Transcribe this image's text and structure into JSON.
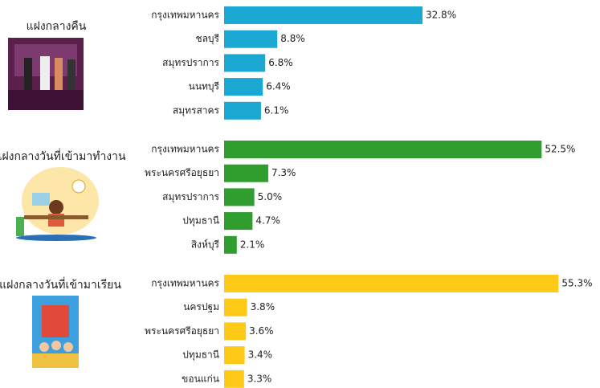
{
  "chart_data": [
    {
      "type": "bar",
      "orientation": "horizontal",
      "title": "แฝงกลางคืน",
      "color": "#1ba8d2",
      "categories": [
        "กรุงเทพมหานคร",
        "ชลบุรี",
        "สมุทรปราการ",
        "นนทบุรี",
        "สมุทรสาคร"
      ],
      "values": [
        32.8,
        8.8,
        6.8,
        6.4,
        6.1
      ],
      "value_labels": [
        "32.8%",
        "8.8%",
        "6.8%",
        "6.4%",
        "6.1%"
      ]
    },
    {
      "type": "bar",
      "orientation": "horizontal",
      "title": "แฝงกลางวันที่เข้ามาทำงาน",
      "color": "#2f9e2f",
      "categories": [
        "กรุงเทพมหานคร",
        "พระนครศรีอยุธยา",
        "สมุทรปราการ",
        "ปทุมธานี",
        "สิงห์บุรี"
      ],
      "values": [
        52.5,
        7.3,
        5.0,
        4.7,
        2.1
      ],
      "value_labels": [
        "52.5%",
        "7.3%",
        "5.0%",
        "4.7%",
        "2.1%"
      ]
    },
    {
      "type": "bar",
      "orientation": "horizontal",
      "title": "แฝงกลางวันที่เข้ามาเรียน",
      "color": "#ffc918",
      "categories": [
        "กรุงเทพมหานคร",
        "นครปฐม",
        "พระนครศรีอยุธยา",
        "ปทุมธานี",
        "ขอนแก่น"
      ],
      "values": [
        55.3,
        3.8,
        3.6,
        3.4,
        3.3
      ],
      "value_labels": [
        "55.3%",
        "3.8%",
        "3.6%",
        "3.4%",
        "3.3%"
      ]
    }
  ]
}
